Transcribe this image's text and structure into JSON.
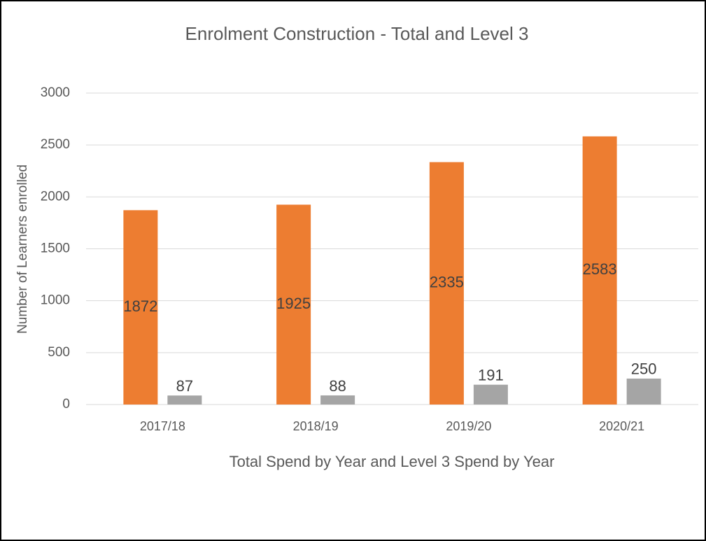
{
  "chart_data": {
    "type": "bar",
    "title": "Enrolment Construction - Total and Level 3",
    "x_label": "Total Spend by Year and Level 3 Spend by Year",
    "y_label": "Number of Learners enrolled",
    "categories": [
      "2017/18",
      "2018/19",
      "2019/20",
      "2020/21"
    ],
    "series": [
      {
        "color": "#ed7d31",
        "values": [
          1872,
          1925,
          2335,
          2583
        ]
      },
      {
        "color": "#a5a5a5",
        "values": [
          87,
          88,
          191,
          250
        ]
      }
    ],
    "ylim": [
      0,
      3000
    ],
    "yticks": [
      0,
      500,
      1000,
      1500,
      2000,
      2500,
      3000
    ],
    "grid": true
  }
}
